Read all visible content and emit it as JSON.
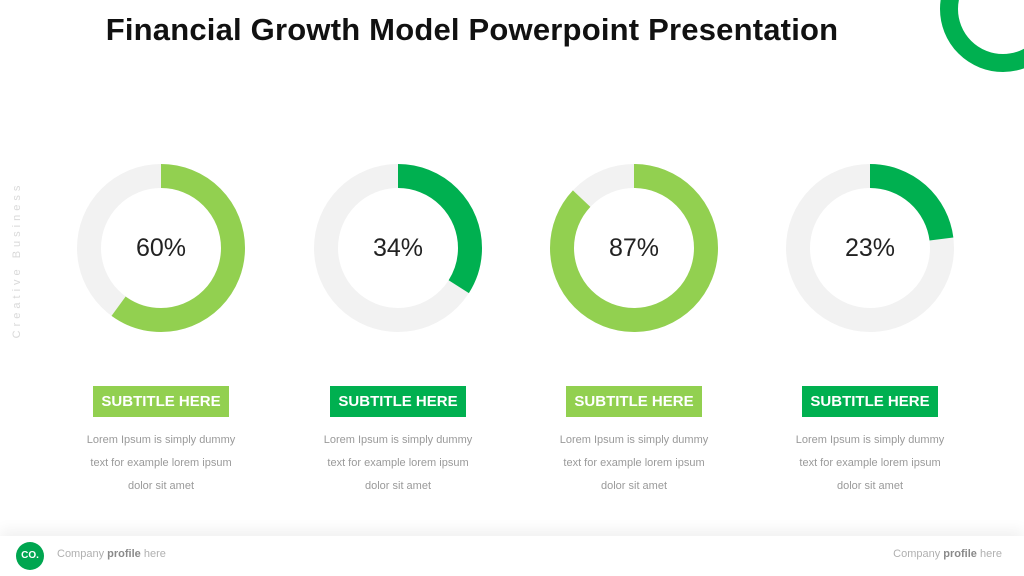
{
  "title": "Financial Growth Model Powerpoint Presentation",
  "side_text": "Creative Business",
  "colors": {
    "light_green": "#92d050",
    "dark_green": "#00b050",
    "track": "#f2f2f2",
    "brand": "#00a650"
  },
  "cards": [
    {
      "percent_label": "60%",
      "value": 60,
      "color": "light",
      "subtitle": "SUBTITLE HERE",
      "line1": "Lorem Ipsum is simply dummy",
      "line2": "text for example lorem ipsum",
      "line3": "dolor sit amet"
    },
    {
      "percent_label": "34%",
      "value": 34,
      "color": "dark",
      "subtitle": "SUBTITLE HERE",
      "line1": "Lorem Ipsum is simply dummy",
      "line2": "text for example lorem ipsum",
      "line3": "dolor sit amet"
    },
    {
      "percent_label": "87%",
      "value": 87,
      "color": "light",
      "subtitle": "SUBTITLE HERE",
      "line1": "Lorem Ipsum is simply dummy",
      "line2": "text for example lorem ipsum",
      "line3": "dolor sit amet"
    },
    {
      "percent_label": "23%",
      "value": 23,
      "color": "dark",
      "subtitle": "SUBTITLE HERE",
      "line1": "Lorem Ipsum is simply dummy",
      "line2": "text for example lorem ipsum",
      "line3": "dolor sit amet"
    }
  ],
  "footer": {
    "logo": "CO.",
    "left_prefix": "Company",
    "left_bold": "profile",
    "left_suffix": "here",
    "right_prefix": "Company",
    "right_bold": "profile",
    "right_suffix": "here"
  }
}
